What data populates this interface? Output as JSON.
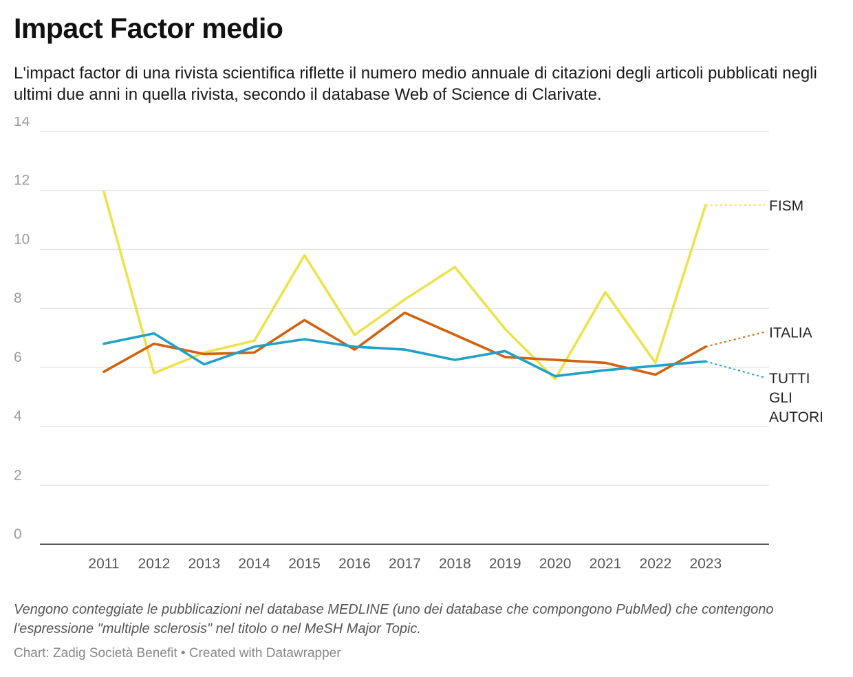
{
  "title": "Impact Factor medio",
  "subtitle": "L'impact factor di una rivista scientifica riflette il numero medio annuale di citazioni degli articoli pubblicati negli ultimi due anni in quella rivista, secondo il database Web of Science di Clarivate.",
  "notes": "Vengono conteggiate le pubblicazioni nel database MEDLINE (uno dei database che compongono PubMed) che contengono l'espressione \"multiple sclerosis\" nel titolo o nel MeSH Major Topic.",
  "byline": "Chart: Zadig Società Benefit • Created with Datawrapper",
  "chart_data": {
    "type": "line",
    "title": "Impact Factor medio",
    "xlabel": "",
    "ylabel": "",
    "x": [
      "2011",
      "2012",
      "2013",
      "2014",
      "2015",
      "2016",
      "2017",
      "2018",
      "2019",
      "2020",
      "2021",
      "2022",
      "2023"
    ],
    "ylim": [
      0,
      14
    ],
    "yticks": [
      0,
      2,
      4,
      6,
      8,
      10,
      12,
      14
    ],
    "grid": true,
    "legend": "direct labels right",
    "series": [
      {
        "name": "FISM",
        "label_lines": [
          "FISM"
        ],
        "color": "#ede24a",
        "trend_end": 11.5,
        "values": [
          11.95,
          5.8,
          6.5,
          6.9,
          9.8,
          7.1,
          8.3,
          9.4,
          7.3,
          5.6,
          8.55,
          6.15,
          11.5
        ]
      },
      {
        "name": "ITALIA",
        "label_lines": [
          "ITALIA"
        ],
        "color": "#d0620e",
        "trend_end": 7.2,
        "values": [
          5.85,
          6.8,
          6.45,
          6.5,
          7.6,
          6.6,
          7.85,
          7.1,
          6.35,
          6.25,
          6.15,
          5.75,
          6.7
        ]
      },
      {
        "name": "TUTTI GLI AUTORI",
        "label_lines": [
          "TUTTI",
          "GLI",
          "AUTORI"
        ],
        "color": "#1fa1c9",
        "trend_end": 5.65,
        "values": [
          6.8,
          7.15,
          6.1,
          6.7,
          6.95,
          6.7,
          6.6,
          6.25,
          6.55,
          5.7,
          5.9,
          6.05,
          6.2
        ]
      }
    ]
  }
}
